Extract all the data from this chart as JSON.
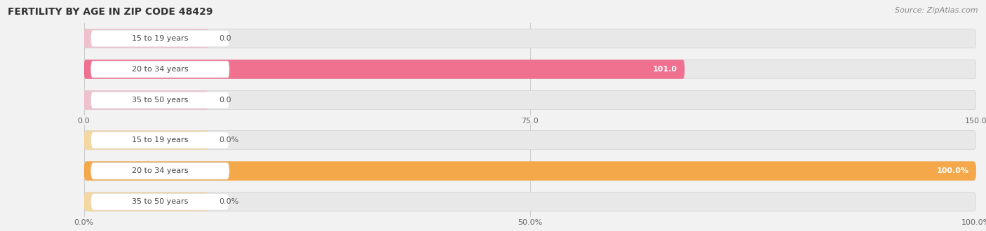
{
  "title": "FERTILITY BY AGE IN ZIP CODE 48429",
  "source": "Source: ZipAtlas.com",
  "top_chart": {
    "categories": [
      "15 to 19 years",
      "20 to 34 years",
      "35 to 50 years"
    ],
    "values": [
      0.0,
      101.0,
      0.0
    ],
    "bar_color": "#f07090",
    "bar_bg_color": "#f0c0cc",
    "label_box_color": "#ffffff",
    "xlim": [
      0,
      150
    ],
    "xticks": [
      0.0,
      75.0,
      150.0
    ],
    "xtick_labels": [
      "0.0",
      "75.0",
      "150.0"
    ]
  },
  "bottom_chart": {
    "categories": [
      "15 to 19 years",
      "20 to 34 years",
      "35 to 50 years"
    ],
    "values": [
      0.0,
      100.0,
      0.0
    ],
    "bar_color": "#f5a84a",
    "bar_bg_color": "#f5d8a0",
    "label_box_color": "#ffffff",
    "xlim": [
      0,
      100
    ],
    "xticks": [
      0.0,
      50.0,
      100.0
    ],
    "xtick_labels": [
      "0.0%",
      "50.0%",
      "100.0%"
    ]
  },
  "title_fontsize": 10,
  "source_fontsize": 8,
  "label_fontsize": 8,
  "tick_fontsize": 8,
  "category_fontsize": 8,
  "fig_bg_color": "#f2f2f2",
  "row_bg_color": "#e8e8e8"
}
